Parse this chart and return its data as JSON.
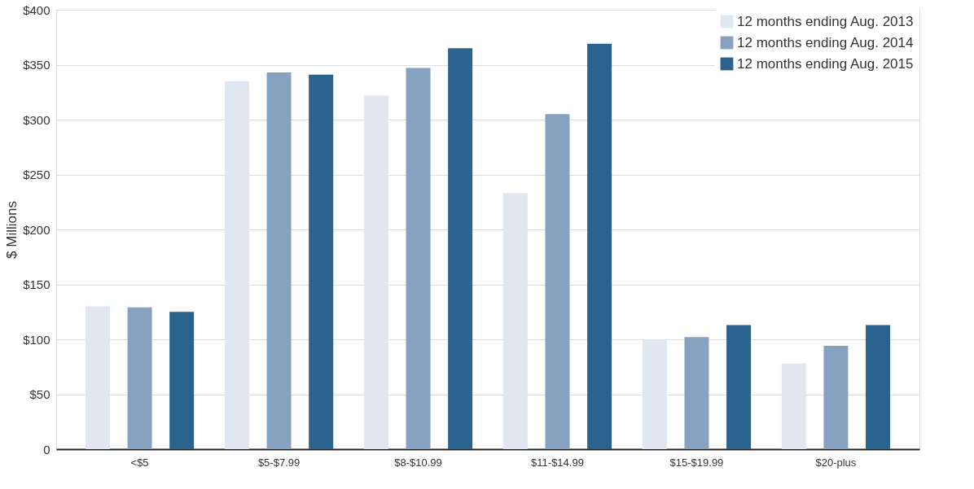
{
  "chart_data": {
    "type": "bar",
    "ylabel": "$ Millions",
    "categories": [
      "<$5",
      "$5-$7.99",
      "$8-$10.99",
      "$11-$14.99",
      "$15-$19.99",
      "$20-plus"
    ],
    "series": [
      {
        "name": "12 months ending Aug. 2013",
        "color": "#e0e7f1",
        "values": [
          130,
          335,
          322,
          233,
          100,
          78
        ]
      },
      {
        "name": "12 months ending Aug. 2014",
        "color": "#87a2c1",
        "values": [
          129,
          343,
          347,
          305,
          102,
          94
        ]
      },
      {
        "name": "12 months ending Aug. 2015",
        "color": "#2a638e",
        "values": [
          125,
          341,
          365,
          369,
          113,
          113
        ]
      }
    ],
    "ylim": [
      0,
      400
    ],
    "yticks": [
      0,
      {
        "value": 50,
        "label": "$50"
      },
      {
        "value": 100,
        "label": "$100"
      },
      {
        "value": 150,
        "label": "$150"
      },
      {
        "value": 200,
        "label": "$200"
      },
      {
        "value": 250,
        "label": "$250"
      },
      {
        "value": 300,
        "label": "$300"
      },
      {
        "value": 350,
        "label": "$350"
      },
      {
        "value": 400,
        "label": "$400"
      }
    ],
    "grid": "y",
    "legend": "top right"
  }
}
